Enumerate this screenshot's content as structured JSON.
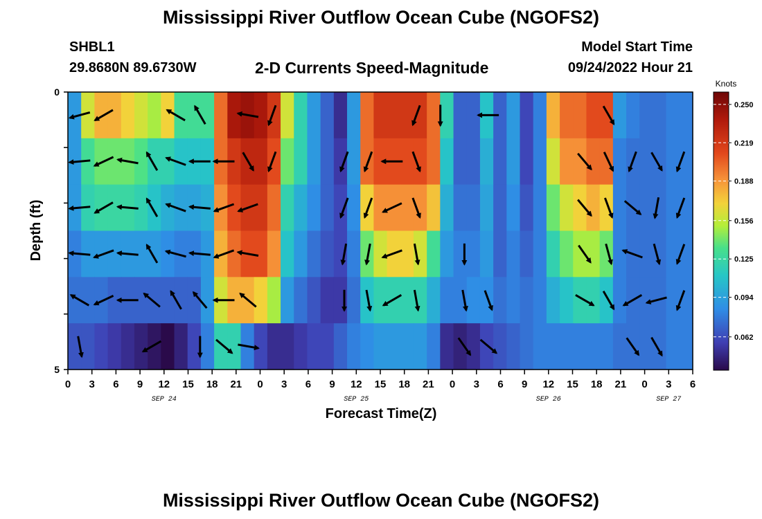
{
  "header": {
    "title": "Mississippi River Outflow Ocean Cube (NGOFS2)",
    "station": "SHBL1",
    "coordinates": "29.8680N  89.6730W",
    "subtitle": "2-D Currents Speed-Magnitude",
    "model_start_label": "Model Start Time",
    "model_start_time": "09/24/2022 Hour 21"
  },
  "footer": {
    "title": "Mississippi River Outflow Ocean Cube (NGOFS2)"
  },
  "chart_data": {
    "type": "heatmap",
    "title": "2-D Currents Speed-Magnitude",
    "xlabel": "Forecast Time(Z)",
    "ylabel": "Depth (ft)",
    "x_tick_labels": [
      "0",
      "3",
      "6",
      "9",
      "12",
      "15",
      "18",
      "21",
      "0",
      "3",
      "6",
      "9",
      "12",
      "15",
      "18",
      "21",
      "0",
      "3",
      "6",
      "9",
      "12",
      "15",
      "18",
      "21",
      "0",
      "3",
      "6"
    ],
    "date_labels": [
      "SEP 24",
      "SEP 25",
      "SEP 26",
      "SEP 27"
    ],
    "date_label_positions_hours": [
      12,
      36,
      60,
      75
    ],
    "x_range_hours": [
      0,
      78
    ],
    "y_tick_labels": [
      "0",
      "",
      "",
      "",
      "",
      "5"
    ],
    "y_range_ft": [
      0,
      5
    ],
    "layers": 6,
    "colorbar": {
      "title": "Knots",
      "ticks": [
        "0.250",
        "0.219",
        "0.188",
        "0.156",
        "0.125",
        "0.094",
        "0.062"
      ],
      "tick_values": [
        0.25,
        0.219,
        0.188,
        0.156,
        0.125,
        0.094,
        0.062
      ],
      "range": [
        0.035,
        0.26
      ]
    },
    "speed_rows_knots": [
      [
        0.09,
        0.16,
        0.18,
        0.18,
        0.17,
        0.16,
        0.15,
        0.17,
        0.13,
        0.13,
        0.13,
        0.2,
        0.24,
        0.245,
        0.24,
        0.22,
        0.16,
        0.12,
        0.09,
        0.07,
        0.05,
        0.09,
        0.2,
        0.22,
        0.22,
        0.22,
        0.22,
        0.2,
        0.12,
        0.07,
        0.07,
        0.11,
        0.07,
        0.09,
        0.06,
        0.08,
        0.18,
        0.2,
        0.2,
        0.21,
        0.21,
        0.09,
        0.08,
        0.075,
        0.075,
        0.08,
        0.08
      ],
      [
        0.09,
        0.13,
        0.14,
        0.14,
        0.14,
        0.135,
        0.12,
        0.12,
        0.11,
        0.11,
        0.11,
        0.2,
        0.22,
        0.23,
        0.23,
        0.21,
        0.14,
        0.12,
        0.09,
        0.07,
        0.055,
        0.09,
        0.2,
        0.21,
        0.21,
        0.21,
        0.21,
        0.2,
        0.11,
        0.07,
        0.07,
        0.1,
        0.07,
        0.09,
        0.06,
        0.08,
        0.16,
        0.19,
        0.19,
        0.2,
        0.2,
        0.08,
        0.075,
        0.075,
        0.075,
        0.08,
        0.08
      ],
      [
        0.09,
        0.12,
        0.125,
        0.125,
        0.125,
        0.12,
        0.11,
        0.1,
        0.095,
        0.095,
        0.1,
        0.19,
        0.21,
        0.22,
        0.22,
        0.2,
        0.12,
        0.1,
        0.085,
        0.07,
        0.06,
        0.085,
        0.17,
        0.19,
        0.19,
        0.19,
        0.19,
        0.175,
        0.1,
        0.075,
        0.075,
        0.095,
        0.07,
        0.085,
        0.065,
        0.08,
        0.14,
        0.16,
        0.17,
        0.18,
        0.17,
        0.08,
        0.075,
        0.075,
        0.075,
        0.08,
        0.08
      ],
      [
        0.08,
        0.09,
        0.09,
        0.09,
        0.09,
        0.09,
        0.09,
        0.085,
        0.08,
        0.08,
        0.09,
        0.18,
        0.2,
        0.21,
        0.21,
        0.19,
        0.11,
        0.09,
        0.075,
        0.065,
        0.06,
        0.08,
        0.14,
        0.16,
        0.17,
        0.17,
        0.16,
        0.13,
        0.09,
        0.08,
        0.08,
        0.09,
        0.07,
        0.08,
        0.07,
        0.08,
        0.12,
        0.14,
        0.15,
        0.15,
        0.14,
        0.08,
        0.075,
        0.075,
        0.075,
        0.08,
        0.08
      ],
      [
        0.075,
        0.075,
        0.075,
        0.07,
        0.07,
        0.07,
        0.07,
        0.07,
        0.07,
        0.07,
        0.09,
        0.16,
        0.18,
        0.18,
        0.17,
        0.15,
        0.09,
        0.075,
        0.065,
        0.055,
        0.055,
        0.075,
        0.11,
        0.12,
        0.12,
        0.12,
        0.12,
        0.1,
        0.08,
        0.08,
        0.085,
        0.085,
        0.075,
        0.08,
        0.075,
        0.08,
        0.1,
        0.11,
        0.12,
        0.12,
        0.11,
        0.08,
        0.075,
        0.075,
        0.075,
        0.08,
        0.08
      ],
      [
        0.065,
        0.065,
        0.06,
        0.055,
        0.05,
        0.045,
        0.04,
        0.03,
        0.045,
        0.06,
        0.08,
        0.12,
        0.12,
        0.08,
        0.06,
        0.05,
        0.05,
        0.055,
        0.06,
        0.06,
        0.07,
        0.08,
        0.085,
        0.09,
        0.09,
        0.09,
        0.09,
        0.08,
        0.05,
        0.045,
        0.05,
        0.06,
        0.065,
        0.07,
        0.075,
        0.08,
        0.08,
        0.08,
        0.08,
        0.08,
        0.08,
        0.075,
        0.075,
        0.075,
        0.075,
        0.08,
        0.08
      ]
    ],
    "current_direction_arrows_deg": [
      [
        255,
        240,
        null,
        null,
        300,
        330,
        null,
        280,
        200,
        null,
        null,
        null,
        null,
        null,
        200,
        180,
        null,
        270,
        null,
        null,
        null,
        null,
        150,
        null,
        null,
        null
      ],
      [
        265,
        245,
        280,
        330,
        290,
        270,
        270,
        150,
        200,
        null,
        null,
        200,
        200,
        270,
        160,
        null,
        null,
        null,
        null,
        null,
        null,
        140,
        155,
        200,
        150,
        200
      ],
      [
        265,
        240,
        275,
        330,
        290,
        275,
        250,
        250,
        null,
        null,
        null,
        200,
        200,
        245,
        160,
        null,
        null,
        null,
        null,
        null,
        null,
        140,
        160,
        130,
        190,
        200
      ],
      [
        275,
        250,
        275,
        330,
        285,
        275,
        250,
        280,
        null,
        null,
        null,
        190,
        190,
        250,
        170,
        null,
        180,
        null,
        null,
        null,
        null,
        145,
        165,
        290,
        165,
        200
      ],
      [
        300,
        245,
        270,
        310,
        330,
        320,
        270,
        310,
        null,
        null,
        null,
        180,
        170,
        240,
        170,
        null,
        170,
        160,
        null,
        null,
        null,
        120,
        150,
        240,
        255,
        200
      ],
      [
        170,
        null,
        null,
        240,
        null,
        180,
        130,
        100,
        null,
        null,
        null,
        null,
        null,
        null,
        null,
        null,
        145,
        130,
        null,
        null,
        null,
        null,
        null,
        145,
        150,
        null
      ]
    ]
  }
}
